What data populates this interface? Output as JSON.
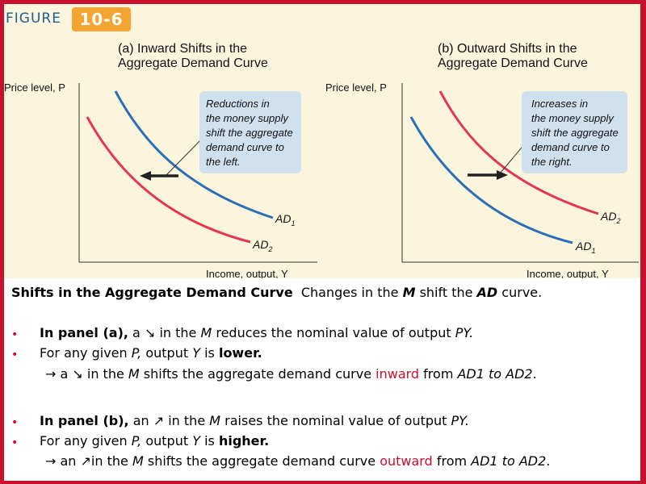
{
  "figure": {
    "label": "FIGURE",
    "number": "10-6",
    "colors": {
      "frame": "#c8102e",
      "background": "#fbf5dd",
      "blue_curve": "#2b6fb6",
      "red_curve": "#e4364e",
      "note_box": "#cfe0ee",
      "badge": "#f2a531"
    }
  },
  "panel_a": {
    "title_line1": "(a) Inward Shifts in the",
    "title_line2": "Aggregate Demand Curve",
    "y_axis_label": "Price level, P",
    "x_axis_label": "Income, output, Y",
    "curve_1": {
      "label": "AD",
      "sub": "1"
    },
    "curve_2": {
      "label": "AD",
      "sub": "2"
    },
    "note_lines": [
      "Reductions in",
      "the money supply",
      "shift the aggregate",
      "demand curve to",
      "the left."
    ]
  },
  "panel_b": {
    "title_line1": "(b) Outward Shifts in the",
    "title_line2": "Aggregate Demand Curve",
    "y_axis_label": "Price level, P",
    "x_axis_label": "Income, output, Y",
    "curve_1": {
      "label": "AD",
      "sub": "1"
    },
    "curve_2": {
      "label": "AD",
      "sub": "2"
    },
    "note_lines": [
      "Increases in",
      "the money supply",
      "shift the aggregate",
      "demand curve to",
      "the right."
    ]
  },
  "text": {
    "heading_bold": "Shifts in the Aggregate Demand Curve",
    "heading_rest_1": "Changes in the ",
    "heading_m": "M",
    "heading_rest_2": " shift the ",
    "heading_ad": "AD",
    "heading_rest_3": " curve.",
    "a1_bold": "In panel (a),",
    "a1_text_1": " a ↘ in the ",
    "a1_m": "M",
    "a1_text_2": " reduces the nominal value of output ",
    "a1_py": "PY.",
    "a2_text_1": "For any given ",
    "a2_p": "P,",
    "a2_text_2": " output ",
    "a2_y": "Y",
    "a2_text_3": " is ",
    "a2_bold": "lower.",
    "a3_text_1": "→ a ↘ in the ",
    "a3_m": "M",
    "a3_text_2": " shifts the aggregate demand curve ",
    "a3_red": "inward",
    "a3_text_3": " from ",
    "a3_it": "AD1 to AD2",
    "a3_end": ".",
    "b1_bold": "In panel (b),",
    "b1_text_1": " an ↗ in the ",
    "b1_m": "M",
    "b1_text_2": " raises the nominal value of output ",
    "b1_py": "PY.",
    "b2_text_1": "For any given ",
    "b2_p": "P,",
    "b2_text_2": " output ",
    "b2_y": "Y",
    "b2_text_3": " is ",
    "b2_bold": "higher.",
    "b3_text_1": "→ an ↗in the ",
    "b3_m": "M",
    "b3_text_2": " shifts the aggregate demand curve ",
    "b3_red": "outward",
    "b3_text_3": " from ",
    "b3_it": "AD1 to AD2",
    "b3_end": ".",
    "bullet": "•"
  }
}
